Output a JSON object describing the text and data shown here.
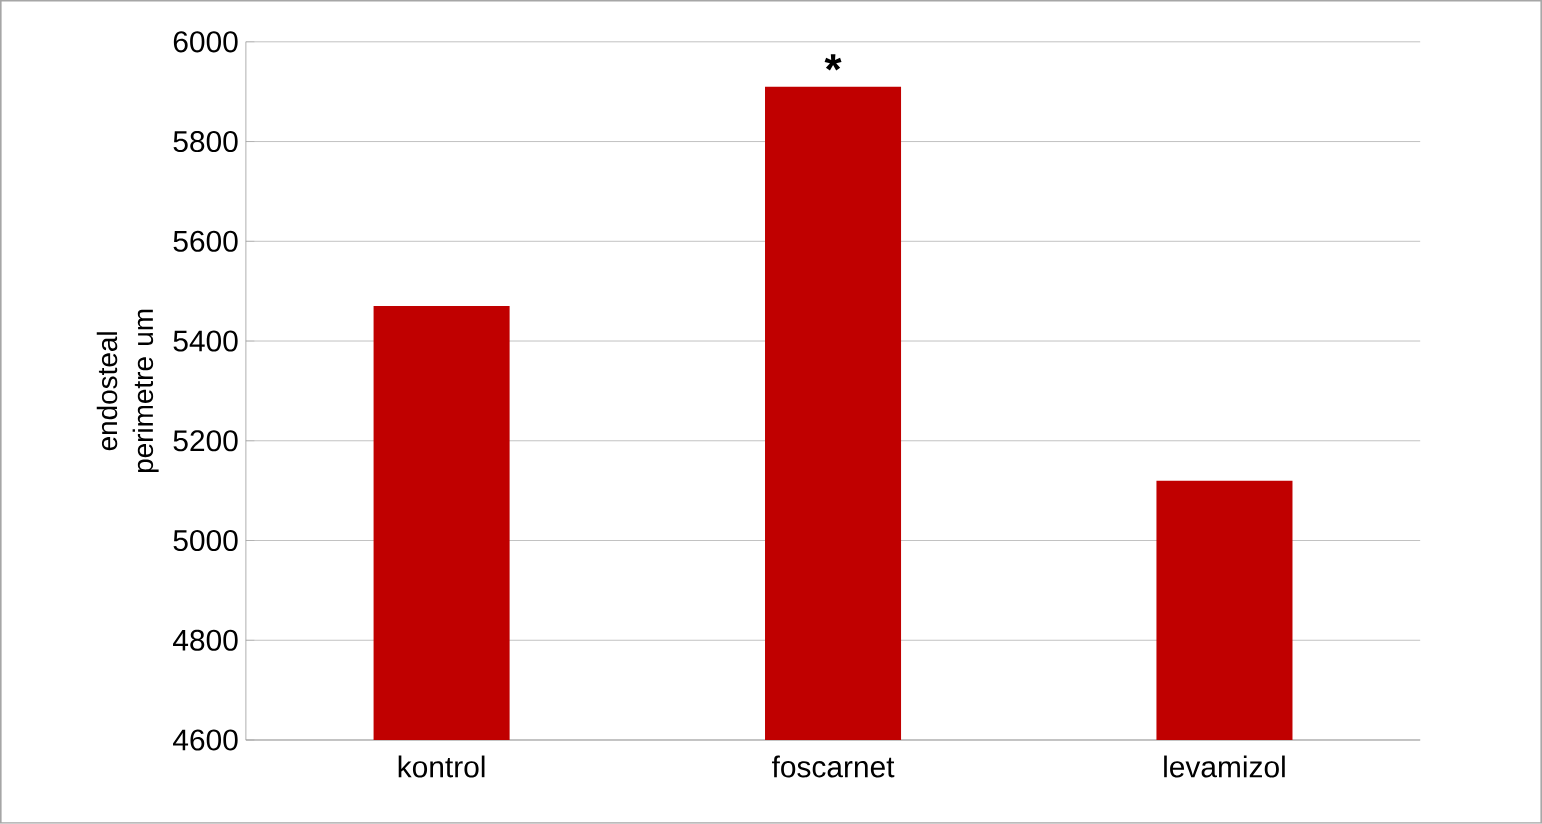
{
  "chart_data": {
    "type": "bar",
    "ylabel": "endosteal perimetre um",
    "categories": [
      "kontrol",
      "foscarnet",
      "levamizol"
    ],
    "values": [
      5470,
      5910,
      5120
    ],
    "color": "#c00000",
    "ylim": [
      4600,
      6000
    ],
    "yticks": [
      4600,
      4800,
      5000,
      5200,
      5400,
      5600,
      5800,
      6000
    ],
    "grid": "y",
    "annotations": [
      {
        "text": "*",
        "x": "foscarnet",
        "y": 5910
      }
    ]
  }
}
